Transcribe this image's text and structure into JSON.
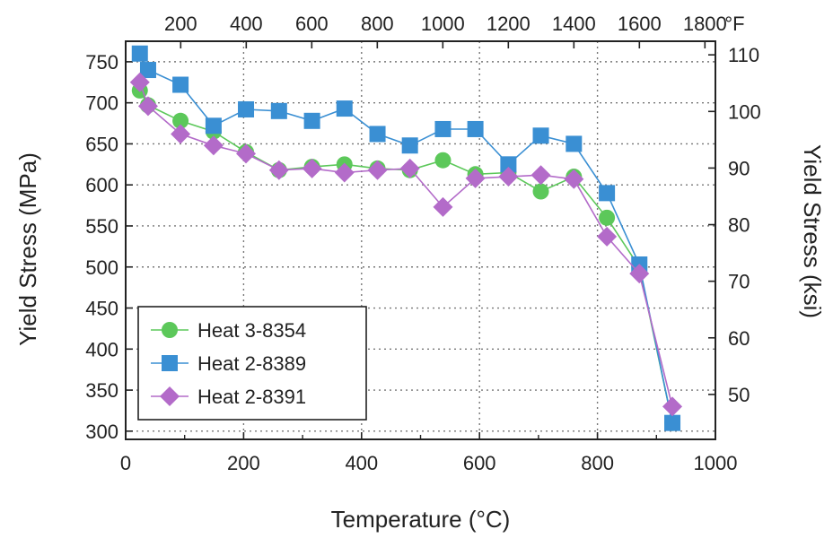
{
  "chart_data": {
    "type": "line",
    "xlabel": "Temperature (°C)",
    "ylabel": "Yield Stress (MPa)",
    "y2label": "Yield Stress (ksi)",
    "top_axis_unit": "°F",
    "xlim": [
      0,
      1000
    ],
    "ylim": [
      290,
      775
    ],
    "grid": true,
    "legend_position": "bottom-left",
    "x_ticks": [
      "0",
      "200",
      "400",
      "600",
      "800",
      "1000"
    ],
    "x_tick_values": [
      0,
      200,
      400,
      600,
      800,
      1000
    ],
    "y_ticks": [
      "300",
      "350",
      "400",
      "450",
      "500",
      "550",
      "600",
      "650",
      "700",
      "750"
    ],
    "y_tick_values": [
      300,
      350,
      400,
      450,
      500,
      550,
      600,
      650,
      700,
      750
    ],
    "top_ticks": [
      "200",
      "400",
      "600",
      "800",
      "1000",
      "1200",
      "1400",
      "1600",
      "1800"
    ],
    "top_tick_values": [
      200,
      400,
      600,
      800,
      1000,
      1200,
      1400,
      1600,
      1800
    ],
    "right_ticks": [
      "50",
      "60",
      "70",
      "80",
      "90",
      "100",
      "110"
    ],
    "right_tick_values": [
      50,
      60,
      70,
      80,
      90,
      100,
      110
    ],
    "series": [
      {
        "name": "Heat 3-8354",
        "color": "#5cc85a",
        "marker": "circle",
        "x": [
          24,
          38,
          93,
          149,
          204,
          260,
          316,
          371,
          427,
          482,
          538,
          593,
          649,
          704,
          760,
          816,
          871,
          927
        ],
        "y": [
          715,
          697,
          678,
          665,
          640,
          618,
          622,
          625,
          620,
          618,
          630,
          613,
          615,
          592,
          610,
          560,
          500,
          310
        ]
      },
      {
        "name": "Heat 2-8389",
        "color": "#3a8fd3",
        "marker": "square",
        "x": [
          24,
          38,
          93,
          149,
          204,
          260,
          316,
          371,
          427,
          482,
          538,
          593,
          649,
          704,
          760,
          816,
          871,
          927
        ],
        "y": [
          760,
          740,
          722,
          672,
          692,
          690,
          678,
          693,
          662,
          648,
          668,
          668,
          625,
          660,
          650,
          590,
          503,
          310
        ]
      },
      {
        "name": "Heat 2-8391",
        "color": "#b36bc9",
        "marker": "diamond",
        "x": [
          24,
          38,
          93,
          149,
          204,
          260,
          316,
          371,
          427,
          482,
          538,
          593,
          649,
          704,
          760,
          816,
          871,
          927
        ],
        "y": [
          725,
          696,
          662,
          648,
          638,
          618,
          620,
          615,
          618,
          620,
          573,
          608,
          610,
          612,
          607,
          537,
          492,
          330
        ]
      }
    ]
  }
}
